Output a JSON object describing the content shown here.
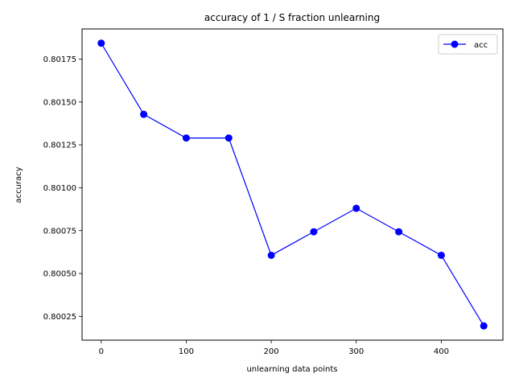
{
  "chart_data": {
    "type": "line",
    "title": "accuracy of 1 / S fraction unlearning",
    "xlabel": "unlearning data points",
    "ylabel": "accuracy",
    "x": [
      0,
      50,
      100,
      150,
      200,
      250,
      300,
      350,
      400,
      450
    ],
    "series": [
      {
        "name": "acc",
        "color": "#0000ff",
        "marker": "circle",
        "values": [
          0.801843,
          0.801428,
          0.80129,
          0.80129,
          0.800606,
          0.800743,
          0.80088,
          0.800743,
          0.800606,
          0.800194
        ]
      }
    ],
    "xlim": [
      -22.5,
      472.5
    ],
    "ylim": [
      0.800111,
      0.801926
    ],
    "xticks": [
      0,
      100,
      200,
      300,
      400
    ],
    "xtick_labels": [
      "0",
      "100",
      "200",
      "300",
      "400"
    ],
    "yticks": [
      0.80025,
      0.8005,
      0.80075,
      0.801,
      0.80125,
      0.8015,
      0.80175
    ],
    "ytick_labels": [
      "0.80025",
      "0.80050",
      "0.80075",
      "0.80100",
      "0.80125",
      "0.80150",
      "0.80175"
    ],
    "grid": false,
    "legend_position": "top-right"
  }
}
